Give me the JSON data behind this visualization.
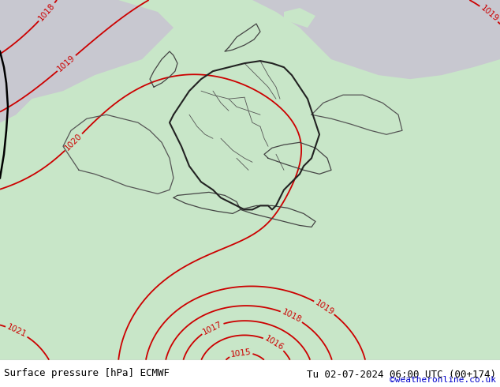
{
  "title_left": "Surface pressure [hPa] ECMWF",
  "title_right": "Tu 02-07-2024 06:00 UTC (00+174)",
  "watermark": "©weatheronline.co.uk",
  "bg_green": "#c8e6c8",
  "bg_gray": "#c8c8d0",
  "blue_color": "#0000cc",
  "red_color": "#cc0000",
  "black_color": "#000000",
  "bottom_bar_color": "#d4ecd4",
  "bottom_text_color": "#000000",
  "watermark_color": "#0000cc",
  "figsize": [
    6.34,
    4.9
  ],
  "dpi": 100
}
